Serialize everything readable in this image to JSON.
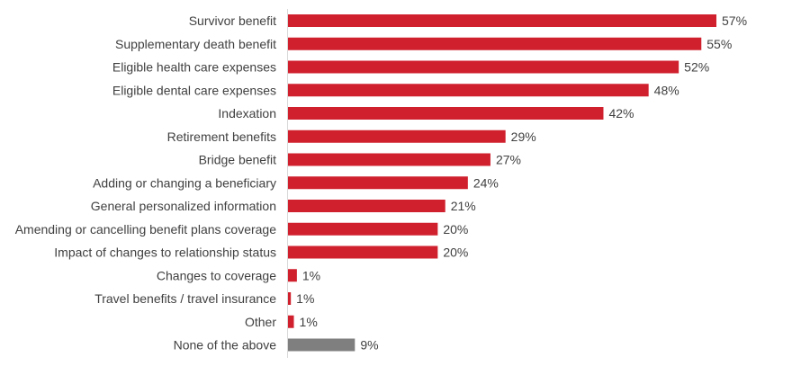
{
  "chart_data": {
    "type": "bar",
    "orientation": "horizontal",
    "categories": [
      "Survivor benefit",
      "Supplementary death benefit",
      "Eligible health care expenses",
      "Eligible dental care expenses",
      "Indexation",
      "Retirement benefits",
      "Bridge benefit",
      "Adding or changing a beneficiary",
      "General personalized information",
      "Amending or cancelling benefit plans coverage",
      "Impact of changes to relationship status",
      "Changes to coverage",
      "Travel benefits / travel insurance",
      "Other",
      "None of the above"
    ],
    "values": [
      57,
      55,
      52,
      48,
      42,
      29,
      27,
      24,
      21,
      20,
      20,
      1.3,
      0.5,
      0.9,
      9
    ],
    "labels": [
      "57%",
      "55%",
      "52%",
      "48%",
      "42%",
      "29%",
      "27%",
      "24%",
      "21%",
      "20%",
      "20%",
      "1%",
      "1%",
      "1%",
      "9%"
    ],
    "bar_colors": [
      "#d0202e",
      "#d0202e",
      "#d0202e",
      "#d0202e",
      "#d0202e",
      "#d0202e",
      "#d0202e",
      "#d0202e",
      "#d0202e",
      "#d0202e",
      "#d0202e",
      "#d0202e",
      "#d0202e",
      "#d0202e",
      "#7f7f7f"
    ],
    "xlim": [
      0,
      57
    ],
    "grid": false,
    "legend": "none"
  }
}
